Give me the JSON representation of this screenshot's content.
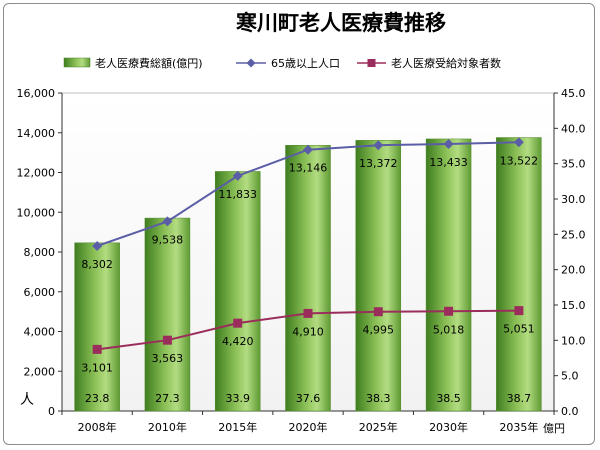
{
  "chart_data": {
    "type": "bar",
    "title": "寒川町老人医療費推移",
    "categories": [
      "2008年",
      "2010年",
      "2015年",
      "2020年",
      "2025年",
      "2030年",
      "2035年"
    ],
    "y_left": {
      "min": 0,
      "max": 16000,
      "step": 2000,
      "unit": "人",
      "ticks": [
        "0",
        "2,000",
        "4,000",
        "6,000",
        "8,000",
        "10,000",
        "12,000",
        "14,000",
        "16,000"
      ]
    },
    "y_right": {
      "min": 0,
      "max": 45,
      "step": 5,
      "unit": "億円",
      "ticks": [
        "0.0",
        "5.0",
        "10.0",
        "15.0",
        "20.0",
        "25.0",
        "30.0",
        "35.0",
        "40.0",
        "45.0"
      ]
    },
    "series": [
      {
        "name": "老人医療費総額(億円)",
        "type": "bar",
        "axis": "right",
        "values": [
          23.8,
          27.3,
          33.9,
          37.6,
          38.3,
          38.5,
          38.7
        ],
        "labels": [
          "23.8",
          "27.3",
          "33.9",
          "37.6",
          "38.3",
          "38.5",
          "38.7"
        ],
        "color": "#6fa83c"
      },
      {
        "name": "65歳以上人口",
        "type": "line",
        "axis": "left",
        "marker": "diamond",
        "values": [
          8302,
          9538,
          11833,
          13146,
          13372,
          13433,
          13522
        ],
        "labels": [
          "8,302",
          "9,538",
          "11,833",
          "13,146",
          "13,372",
          "13,433",
          "13,522"
        ],
        "color": "#5b5ea6"
      },
      {
        "name": "老人医療受給対象者数",
        "type": "line",
        "axis": "left",
        "marker": "square",
        "values": [
          3101,
          3563,
          4420,
          4910,
          4995,
          5018,
          5051
        ],
        "labels": [
          "3,101",
          "3,563",
          "4,420",
          "4,910",
          "4,995",
          "5,018",
          "5,051"
        ],
        "color": "#9b2d5c"
      }
    ],
    "legend_position": "top",
    "grid": false
  }
}
